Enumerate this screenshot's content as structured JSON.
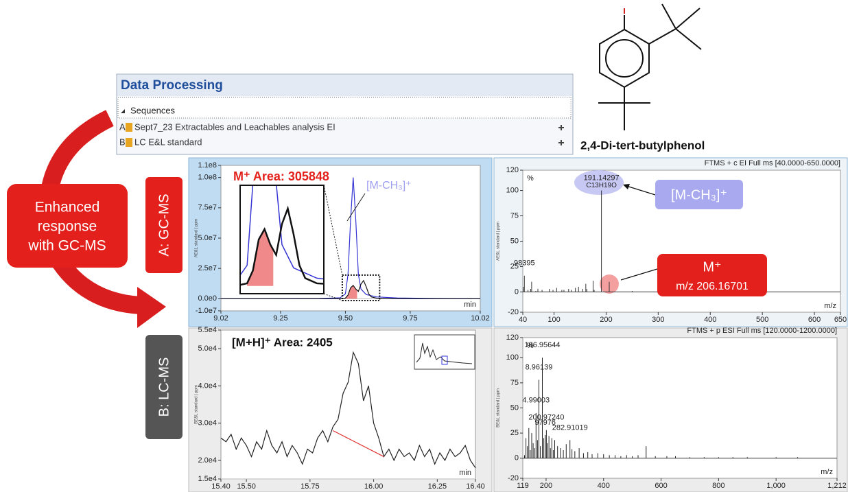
{
  "header": {
    "title": "Data Processing",
    "section": "Sequences",
    "rows": [
      {
        "id": "A",
        "name": "Sept7_23 Extractables and Leachables analysis EI"
      },
      {
        "id": "B",
        "name": "LC E&L standard"
      }
    ]
  },
  "compound": "2,4-Di-tert-butylphenol",
  "callout": [
    "Enhanced",
    "response",
    "with GC-MS"
  ],
  "row_labels": [
    "A: GC-MS",
    "B: LC-MS"
  ],
  "chart_data": [
    {
      "type": "line",
      "y_label": "AE&L standard | ppm",
      "x_label": "min",
      "annotation": "M⁺ Area: 305848",
      "peak_label": "[M-CH₃]⁺",
      "xlim": [
        9.02,
        10.02
      ],
      "xticks": [
        9.02,
        9.25,
        {
          "value": 9.5,
          "label": "9.50"
        },
        9.75,
        10.02
      ],
      "ylim": [
        -10000000,
        110000000
      ],
      "yticks": [
        {
          "value": -10000000,
          "label": "-1.0e7"
        },
        {
          "value": 0,
          "label": "0.0e0"
        },
        {
          "value": 25000000,
          "label": "2.5e7"
        },
        {
          "value": 50000000,
          "label": "5.0e7"
        },
        {
          "value": 75000000,
          "label": "7.5e7"
        },
        {
          "value": 100000000,
          "label": "1.0e8"
        },
        {
          "value": 110000000,
          "label": "1.1e8"
        }
      ],
      "series": [
        {
          "color": "#f08a8a",
          "fill": true,
          "x": [
            9.5,
            9.51,
            9.52,
            9.53,
            9.54,
            9.545
          ],
          "values": [
            500000,
            3000000,
            9000000,
            11000000,
            8000000,
            7000000
          ]
        },
        {
          "color": "#3434d4",
          "x": [
            9.02,
            9.2,
            9.4,
            9.48,
            9.5,
            9.51,
            9.52,
            9.53,
            9.54,
            9.55,
            9.56,
            9.58,
            9.62,
            9.7,
            9.85,
            10.02
          ],
          "values": [
            0,
            0,
            200000,
            800000,
            4000000,
            20000000,
            65000000,
            100000000,
            65000000,
            20000000,
            8000000,
            3500000,
            1500000,
            600000,
            200000,
            0
          ]
        },
        {
          "color": "#111111",
          "x": [
            9.02,
            9.3,
            9.48,
            9.5,
            9.51,
            9.52,
            9.53,
            9.54,
            9.55,
            9.56,
            9.57,
            9.58,
            9.59,
            9.6,
            9.62,
            9.7,
            10.02
          ],
          "values": [
            0,
            0,
            0,
            500000,
            3000000,
            9000000,
            11000000,
            8000000,
            6000000,
            12000000,
            15000000,
            10000000,
            4000000,
            1500000,
            500000,
            0,
            0
          ]
        }
      ]
    },
    {
      "type": "spectrum",
      "title": "FTMS + c EI Full ms [40.0000-650.0000]",
      "y_label": "AE&L standard | ppm",
      "y_unit": "%",
      "x_label": "m/z",
      "color": "#333333",
      "callouts": [
        "[M-CH₃]⁺",
        "M⁺",
        "m/z 206.16701"
      ],
      "xlim": [
        40,
        650
      ],
      "xticks": [
        40,
        100,
        200,
        300,
        400,
        500,
        600,
        650
      ],
      "ylim": [
        -20,
        120
      ],
      "yticks": [
        -20,
        0,
        25,
        50,
        75,
        100,
        120
      ],
      "x": [
        41,
        43,
        50,
        55,
        57,
        65,
        69,
        77,
        91,
        98,
        105,
        115,
        119,
        128,
        133,
        141,
        147,
        155,
        161,
        163,
        175,
        177,
        191,
        206,
        250
      ],
      "values": [
        5,
        16,
        2,
        3,
        10,
        1,
        3,
        2,
        3,
        2,
        4,
        2,
        2,
        3,
        2,
        4,
        5,
        3,
        8,
        3,
        11,
        2,
        100,
        10,
        1
      ],
      "stick_labels": [
        null,
        "98395",
        null,
        null,
        null,
        null,
        null,
        null,
        null,
        null,
        null,
        null,
        null,
        null,
        null,
        null,
        null,
        null,
        null,
        null,
        null,
        null,
        "191.14297",
        null,
        null
      ],
      "stick_sublabels": [
        null,
        null,
        null,
        null,
        null,
        null,
        null,
        null,
        null,
        null,
        null,
        null,
        null,
        null,
        null,
        null,
        null,
        null,
        null,
        null,
        null,
        null,
        "C13H19O",
        null,
        null
      ]
    },
    {
      "type": "line",
      "y_label": "BE&L standard | ppm",
      "x_label": "min",
      "annotation": "[M+H]⁺ Area: 2405",
      "xlim": [
        15.4,
        16.4
      ],
      "xticks": [
        {
          "value": 15.4,
          "label": "15.40"
        },
        {
          "value": 15.5,
          "label": "15.50"
        },
        15.75,
        {
          "value": 16,
          "label": "16.00"
        },
        16.25,
        {
          "value": 16.4,
          "label": "16.40"
        }
      ],
      "ylim": [
        15000,
        55000
      ],
      "yticks": [
        {
          "value": 15000,
          "label": "1.5e4"
        },
        {
          "value": 20000,
          "label": "2.0e4"
        },
        {
          "value": 30000,
          "label": "3.0e4"
        },
        {
          "value": 40000,
          "label": "4.0e4"
        },
        {
          "value": 50000,
          "label": "5.0e4"
        },
        {
          "value": 55000,
          "label": "5.5e4"
        }
      ],
      "series": [
        {
          "color": "#222222",
          "x": [
            15.4,
            15.42,
            15.44,
            15.46,
            15.48,
            15.5,
            15.52,
            15.54,
            15.56,
            15.58,
            15.6,
            15.62,
            15.64,
            15.66,
            15.68,
            15.7,
            15.72,
            15.74,
            15.76,
            15.78,
            15.8,
            15.82,
            15.84,
            15.86,
            15.88,
            15.9,
            15.92,
            15.94,
            15.96,
            15.98,
            16.0,
            16.02,
            16.04,
            16.06,
            16.08,
            16.1,
            16.12,
            16.14,
            16.16,
            16.18,
            16.2,
            16.22,
            16.24,
            16.26,
            16.28,
            16.3,
            16.32,
            16.34,
            16.36,
            16.38,
            16.4
          ],
          "values": [
            26000,
            25000,
            27000,
            23000,
            26000,
            24000,
            21000,
            25000,
            23000,
            28000,
            24000,
            22000,
            25000,
            21000,
            24000,
            22000,
            19000,
            23000,
            22000,
            26000,
            28000,
            25000,
            29000,
            31000,
            38000,
            41000,
            49000,
            46000,
            36000,
            40000,
            30000,
            26000,
            21000,
            23000,
            20000,
            23000,
            21000,
            22000,
            20000,
            24000,
            21000,
            23000,
            19000,
            22000,
            20000,
            23000,
            21000,
            22000,
            24000,
            20000,
            18000
          ]
        },
        {
          "color": "#e03030",
          "x": [
            15.84,
            16.04
          ],
          "values": [
            28000,
            21000
          ]
        }
      ]
    },
    {
      "type": "spectrum",
      "title": "FTMS + p ESI Full ms [120.0000-1200.0000]",
      "y_label": "BE&L standard | ppm",
      "y_unit": "%",
      "x_label": "m/z",
      "color": "#222222",
      "xlim": [
        119,
        1212
      ],
      "xticks": [
        119,
        200,
        400,
        600,
        800,
        {
          "value": 1000,
          "label": "1,000"
        },
        {
          "value": 1212,
          "label": "1,212"
        }
      ],
      "ylim": [
        -20,
        120
      ],
      "yticks": [
        -20,
        0,
        25,
        50,
        75,
        100,
        120
      ],
      "x": [
        125,
        130,
        135,
        140,
        145,
        150,
        155,
        160,
        165,
        170,
        175,
        180,
        187,
        192,
        197,
        201,
        205,
        210,
        215,
        220,
        225,
        230,
        240,
        250,
        260,
        270,
        283,
        290,
        300,
        315,
        330,
        345,
        360,
        380,
        400,
        420,
        440,
        460,
        480,
        500,
        520,
        548,
        580,
        620,
        650,
        700,
        750,
        800,
        850,
        900,
        1000,
        1075
      ],
      "values": [
        3,
        20,
        12,
        30,
        8,
        25,
        15,
        10,
        45,
        18,
        78,
        12,
        100,
        20,
        23,
        28,
        15,
        22,
        10,
        20,
        8,
        18,
        12,
        10,
        8,
        14,
        18,
        9,
        7,
        10,
        5,
        6,
        4,
        5,
        4,
        3,
        3,
        2,
        3,
        2,
        3,
        12,
        2,
        2,
        2,
        1,
        1,
        1,
        1,
        1,
        1,
        1
      ],
      "stick_labels": [
        null,
        null,
        null,
        null,
        null,
        null,
        null,
        null,
        "4.99003",
        null,
        "8.96139",
        null,
        "186.95644",
        null,
        "97976",
        "200.97240",
        null,
        null,
        null,
        null,
        null,
        null,
        null,
        null,
        null,
        null,
        "282.91019",
        null,
        null,
        null,
        null,
        null,
        null,
        null,
        null,
        null,
        null,
        null,
        null,
        null,
        null,
        null,
        null,
        null,
        null,
        null,
        null,
        null,
        null,
        null,
        null,
        null
      ]
    }
  ]
}
